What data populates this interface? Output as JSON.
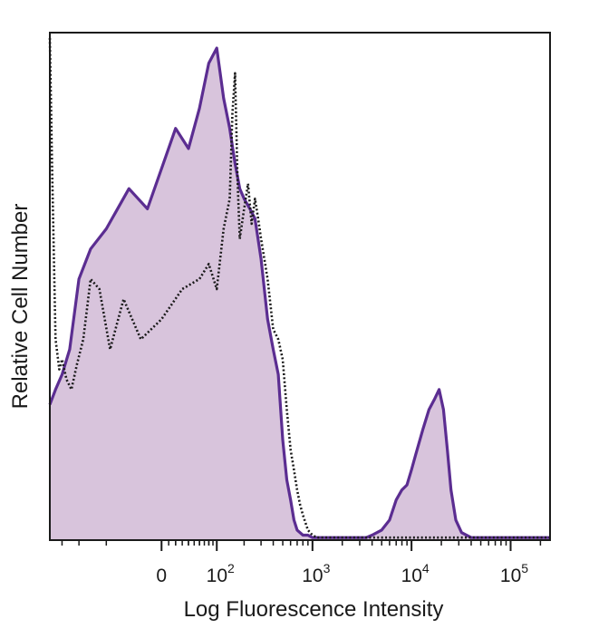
{
  "chart_data": {
    "type": "area",
    "title": "",
    "xlabel": "Log Fluorescence Intensity",
    "ylabel": "Relative Cell Number",
    "x_scale": "biexponential",
    "xlim": [
      -400,
      250000
    ],
    "ylim": [
      0,
      100
    ],
    "grid": false,
    "legend": "none",
    "x_ticks": [
      {
        "value": 0,
        "base": "0",
        "exp": ""
      },
      {
        "value": 100,
        "base": "10",
        "exp": "2"
      },
      {
        "value": 1000,
        "base": "10",
        "exp": "3"
      },
      {
        "value": 10000,
        "base": "10",
        "exp": "4"
      },
      {
        "value": 100000,
        "base": "10",
        "exp": "5"
      }
    ],
    "series": [
      {
        "style": "filled",
        "color": "#5b2d91",
        "fill": "#d8c4dc",
        "x": [
          -400,
          -350,
          -300,
          -250,
          -200,
          -150,
          -100,
          -50,
          -20,
          0,
          20,
          40,
          60,
          80,
          100,
          120,
          140,
          160,
          180,
          200,
          230,
          260,
          300,
          350,
          400,
          450,
          500,
          550,
          600,
          650,
          700,
          800,
          900,
          1000,
          1200,
          1500,
          2000,
          2500,
          3000,
          3500,
          4000,
          5000,
          6000,
          7000,
          8000,
          9000,
          10000,
          11000,
          13000,
          15000,
          17000,
          19000,
          21000,
          23000,
          25000,
          28000,
          32000,
          40000,
          60000,
          80000,
          100000,
          130000,
          160000,
          200000,
          250000
        ],
        "y": [
          27,
          30,
          33,
          38,
          52,
          58,
          62,
          70,
          66,
          74,
          82,
          78,
          86,
          95,
          98,
          88,
          82,
          75,
          70,
          68,
          66,
          64,
          56,
          44,
          38,
          33,
          20,
          12,
          8,
          4,
          2,
          1,
          1,
          0.5,
          0.5,
          0.5,
          0.5,
          0.5,
          0.5,
          0.5,
          1,
          2,
          4,
          8,
          10,
          11,
          14,
          17,
          22,
          26,
          28,
          30,
          26,
          18,
          10,
          4,
          1.5,
          0.5,
          0.5,
          0.5,
          0.5,
          0.5,
          0.5,
          0.5,
          0.5
        ]
      },
      {
        "style": "dotted",
        "color": "#1a1a1a",
        "x": [
          -400,
          -380,
          -350,
          -320,
          -300,
          -270,
          -240,
          -210,
          -180,
          -150,
          -120,
          -90,
          -60,
          -30,
          0,
          30,
          60,
          80,
          100,
          120,
          140,
          150,
          160,
          170,
          180,
          200,
          220,
          240,
          260,
          280,
          300,
          350,
          400,
          450,
          500,
          550,
          600,
          650,
          700,
          750,
          800,
          900,
          1000,
          1100,
          1200,
          1500,
          2000,
          3000,
          5000,
          10000,
          20000,
          50000,
          100000,
          250000
        ],
        "y": [
          100,
          75,
          40,
          34,
          36,
          32,
          30,
          35,
          40,
          52,
          50,
          38,
          48,
          40,
          44,
          50,
          52,
          55,
          50,
          62,
          68,
          85,
          93,
          72,
          60,
          66,
          71,
          63,
          68,
          64,
          60,
          52,
          42,
          40,
          36,
          26,
          18,
          14,
          10,
          7,
          5,
          2,
          1,
          0.5,
          0.5,
          0.5,
          0.5,
          0.5,
          0.5,
          0.5,
          0.5,
          0.5,
          0.5,
          0.5
        ]
      }
    ]
  }
}
